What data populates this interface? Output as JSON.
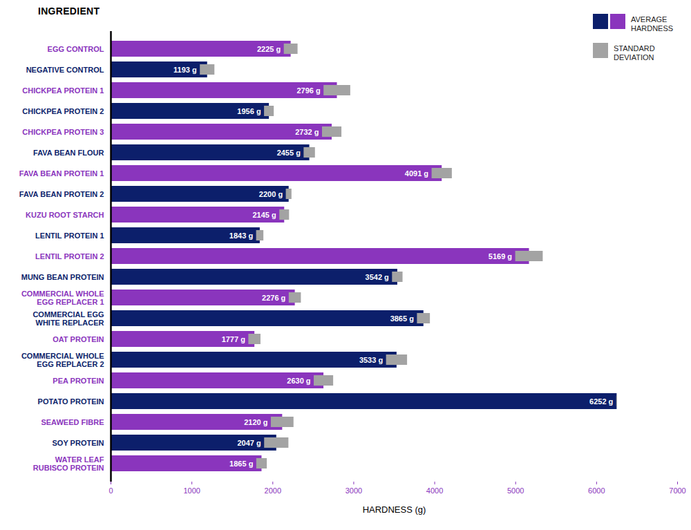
{
  "chart_data": {
    "type": "bar",
    "orientation": "horizontal",
    "y_label": "INGREDIENT",
    "x_label": "HARDNESS (g)",
    "categories": [
      "EGG CONTROL",
      "NEGATIVE CONTROL",
      "CHICKPEA PROTEIN 1",
      "CHICKPEA PROTEIN 2",
      "CHICKPEA PROTEIN 3",
      "FAVA BEAN FLOUR",
      "FAVA BEAN PROTEIN 1",
      "FAVA BEAN PROTEIN 2",
      "KUZU ROOT STARCH",
      "LENTIL PROTEIN 1",
      "LENTIL PROTEIN 2",
      "MUNG BEAN PROTEIN",
      "COMMERCIAL WHOLE\nEGG REPLACER 1",
      "COMMERCIAL EGG\nWHITE REPLACER",
      "OAT PROTEIN",
      "COMMERCIAL WHOLE\nEGG REPLACER 2",
      "PEA PROTEIN",
      "POTATO PROTEIN",
      "SEAWEED FIBRE",
      "SOY PROTEIN",
      "WATER LEAF\nRUBISCO PROTEIN"
    ],
    "series": [
      {
        "name": "AVERAGE HARDNESS",
        "colors": [
          "#8a35bd",
          "#0c1f6b",
          "#8a35bd",
          "#0c1f6b",
          "#8a35bd",
          "#0c1f6b",
          "#8a35bd",
          "#0c1f6b",
          "#8a35bd",
          "#0c1f6b",
          "#8a35bd",
          "#0c1f6b",
          "#8a35bd",
          "#0c1f6b",
          "#8a35bd",
          "#0c1f6b",
          "#8a35bd",
          "#0c1f6b",
          "#8a35bd",
          "#0c1f6b",
          "#8a35bd"
        ],
        "values": [
          2225,
          1193,
          2796,
          1956,
          2732,
          2455,
          4091,
          2200,
          2145,
          1843,
          5169,
          3542,
          2276,
          3865,
          1777,
          3533,
          2630,
          6252,
          2120,
          2047,
          1865
        ],
        "value_labels": [
          "2225 g",
          "1193 g",
          "2796 g",
          "1956 g",
          "2732 g",
          "2455 g",
          "4091 g",
          "2200 g",
          "2145 g",
          "1843 g",
          "5169 g",
          "3542 g",
          "2276 g",
          "3865 g",
          "1777 g",
          "3533 g",
          "2630 g",
          "6252 g",
          "2120 g",
          "2047 g",
          "1865 g"
        ],
        "std_dev": [
          85,
          90,
          165,
          60,
          120,
          70,
          125,
          35,
          60,
          45,
          170,
          65,
          75,
          80,
          75,
          130,
          120,
          5,
          140,
          150,
          65
        ],
        "std_dev_name": "STANDARD DEVIATION",
        "std_dev_color": "#a3a3a3"
      }
    ],
    "xlim": [
      0,
      7000
    ],
    "xticks": [
      0,
      1000,
      2000,
      3000,
      4000,
      5000,
      6000,
      7000
    ],
    "data_labels": true,
    "legend": "top-right",
    "grid": false
  }
}
